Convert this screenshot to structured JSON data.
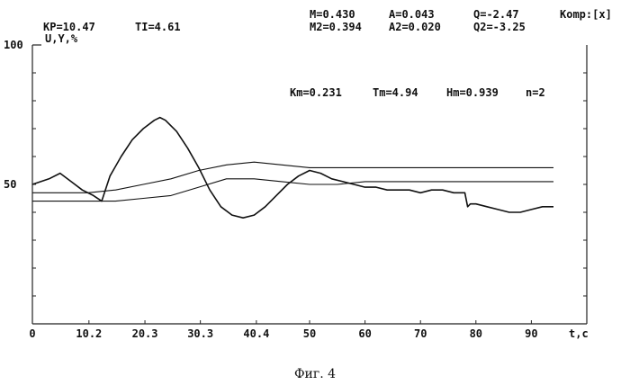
{
  "header": {
    "kp": "KP=10.47",
    "ti": "TI=4.61",
    "m": "M=0.430",
    "a": "A=0.043",
    "q": "Q=-2.47",
    "komp": "Komp:[x]",
    "m2": "M2=0.394",
    "a2": "A2=0.020",
    "q2": "Q2=-3.25"
  },
  "params": {
    "km": "Km=0.231",
    "tm": "Tm=4.94",
    "hm": "Hm=0.939",
    "n": "n=2"
  },
  "caption": "Фиг. 4",
  "chart_data": {
    "type": "line",
    "ylabel": "U,Y,%",
    "xlabel": "t,c",
    "xlim": [
      0,
      100
    ],
    "ylim": [
      0,
      100
    ],
    "x_ticks": [
      "0",
      "10.2",
      "20.3",
      "30.3",
      "40.4",
      "50",
      "60",
      "70",
      "80",
      "90"
    ],
    "x_tick_values": [
      0,
      10.2,
      20.3,
      30.3,
      40.4,
      50,
      60,
      70,
      80,
      90
    ],
    "y_ticks": [
      "100",
      "50"
    ],
    "y_tick_values": [
      100,
      50
    ],
    "series": [
      {
        "values_x": [
          0,
          3,
          5,
          7,
          9,
          11,
          12.5,
          14,
          16,
          18,
          20,
          22,
          23,
          24,
          26,
          28,
          30,
          32,
          34,
          36,
          38,
          40,
          42,
          44,
          46,
          48,
          50,
          52,
          54,
          56,
          58,
          60,
          62,
          64,
          66,
          68,
          70,
          72,
          74,
          76,
          77,
          78,
          78.5,
          79,
          80,
          82,
          84,
          86,
          88,
          90,
          92,
          94
        ],
        "values_y": [
          50,
          52,
          54,
          51,
          48,
          46,
          44,
          53,
          60,
          66,
          70,
          73,
          74,
          73,
          69,
          63,
          56,
          48,
          42,
          39,
          38,
          39,
          42,
          46,
          50,
          53,
          55,
          54,
          52,
          51,
          50,
          49,
          49,
          48,
          48,
          48,
          47,
          48,
          48,
          47,
          47,
          47,
          42,
          43,
          43,
          42,
          41,
          40,
          40,
          41,
          42,
          42
        ]
      },
      {
        "values_x": [
          0,
          5,
          10,
          15,
          20,
          25,
          30,
          35,
          40,
          45,
          50,
          55,
          60,
          70,
          80,
          90,
          94
        ],
        "values_y": [
          47,
          47,
          47,
          48,
          50,
          52,
          55,
          57,
          58,
          57,
          56,
          56,
          56,
          56,
          56,
          56,
          56
        ]
      },
      {
        "values_x": [
          0,
          5,
          10,
          15,
          20,
          25,
          30,
          35,
          40,
          45,
          50,
          55,
          60,
          70,
          80,
          90,
          94
        ],
        "values_y": [
          44,
          44,
          44,
          44,
          45,
          46,
          49,
          52,
          52,
          51,
          50,
          50,
          51,
          51,
          51,
          51,
          51
        ]
      }
    ]
  }
}
